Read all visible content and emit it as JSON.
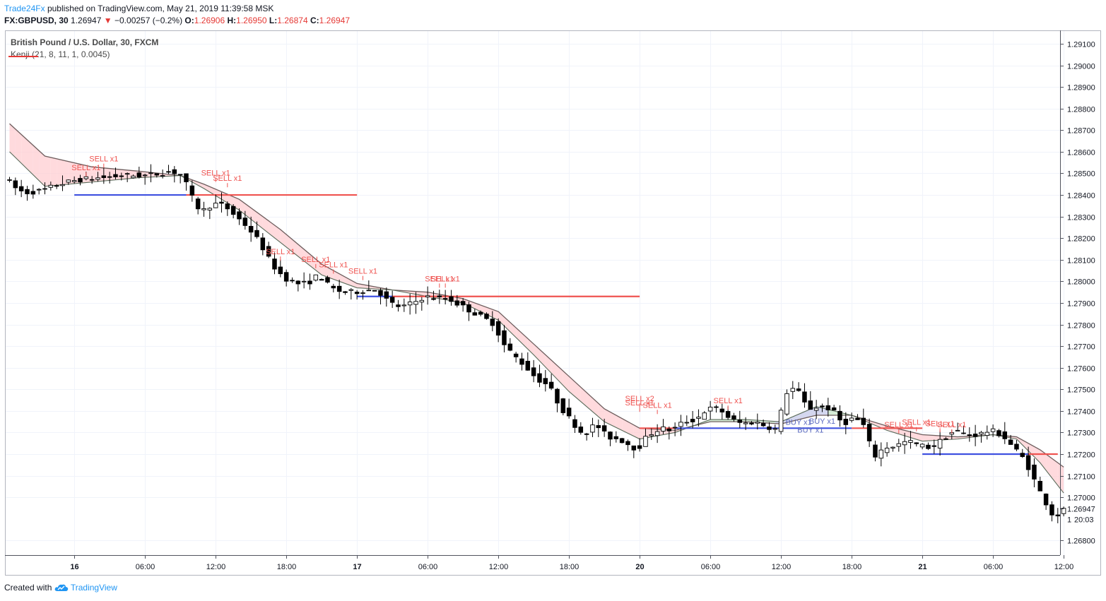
{
  "header": {
    "author": "Trade24Fx",
    "published": "published on TradingView.com, May 21, 2019 11:39:58 MSK",
    "symbol_interval": "FX:GBPUSD, 30",
    "last": "1.26947",
    "change_arrow": "▼",
    "change": "−0.00257 (−0.2%)",
    "o_label": "O:",
    "o_value": "1.26906",
    "h_label": "H:",
    "h_value": "1.26950",
    "l_label": "L:",
    "l_value": "1.26874",
    "c_label": "C:",
    "c_value": "1.26947"
  },
  "legend": {
    "title": "British Pound / U.S. Dollar, 30, FXCM",
    "indicator": "Kenji (21, 8, 11, 1, 0.0045)"
  },
  "footer": {
    "created_with": "Created with",
    "brand": "TradingView"
  },
  "colors": {
    "up_candle": "#ffffff",
    "down_candle": "#000000",
    "sell_text": "#ef5350",
    "buy_text": "#5c6bc0",
    "resistance": "#ef5350",
    "support": "#3f51e0",
    "cloud_bear": "#ffcdd2",
    "cloud_bull": "#c8e6c9",
    "cloud_neutral": "#c5cae9",
    "axis_text": "#131722",
    "grid": "#f0f3fa",
    "price_tag_bg": "#ffffff"
  },
  "chart_data": {
    "type": "candlestick",
    "symbol": "FX:GBPUSD",
    "interval": "30",
    "y_ticks": [
      "1.29100",
      "1.29000",
      "1.28900",
      "1.28800",
      "1.28700",
      "1.28600",
      "1.28500",
      "1.28400",
      "1.28300",
      "1.28200",
      "1.28100",
      "1.28000",
      "1.27900",
      "1.27800",
      "1.27700",
      "1.27600",
      "1.27500",
      "1.27400",
      "1.27300",
      "1.27200",
      "1.27100",
      "1.27000",
      "1.26800"
    ],
    "ylim": [
      1.2675,
      1.2915
    ],
    "x_ticks": [
      {
        "label": "16",
        "t": 5,
        "bold": true
      },
      {
        "label": "06:00",
        "t": 17
      },
      {
        "label": "12:00",
        "t": 29
      },
      {
        "label": "18:00",
        "t": 41
      },
      {
        "label": "17",
        "t": 53,
        "bold": true
      },
      {
        "label": "06:00",
        "t": 65
      },
      {
        "label": "12:00",
        "t": 77
      },
      {
        "label": "18:00",
        "t": 89
      },
      {
        "label": "20",
        "t": 101,
        "bold": true
      },
      {
        "label": "06:00",
        "t": 113
      },
      {
        "label": "12:00",
        "t": 125
      },
      {
        "label": "18:00",
        "t": 137
      },
      {
        "label": "21",
        "t": 149,
        "bold": true
      },
      {
        "label": "06:00",
        "t": 161
      },
      {
        "label": "12:00",
        "t": 173
      }
    ],
    "last_price": {
      "label": "1.26947",
      "value": 1.26947
    },
    "time_tag": {
      "label": "20:03",
      "value": 1.26897
    },
    "waypoints": [
      [
        -6,
        1.2848
      ],
      [
        -5,
        1.2844
      ],
      [
        -3,
        1.2841
      ],
      [
        0,
        1.2842
      ],
      [
        3,
        1.2845
      ],
      [
        6,
        1.2847
      ],
      [
        10,
        1.2848
      ],
      [
        14,
        1.2849
      ],
      [
        18,
        1.2849
      ],
      [
        22,
        1.2851
      ],
      [
        24,
        1.2849
      ],
      [
        25,
        1.2841
      ],
      [
        27,
        1.2832
      ],
      [
        29,
        1.2836
      ],
      [
        31,
        1.2835
      ],
      [
        33,
        1.283
      ],
      [
        35,
        1.2825
      ],
      [
        37,
        1.2818
      ],
      [
        39,
        1.2808
      ],
      [
        41,
        1.2802
      ],
      [
        43,
        1.2799
      ],
      [
        45,
        1.2799
      ],
      [
        47,
        1.2803
      ],
      [
        49,
        1.2797
      ],
      [
        51,
        1.2795
      ],
      [
        53,
        1.2795
      ],
      [
        55,
        1.2796
      ],
      [
        57,
        1.2796
      ],
      [
        59,
        1.279
      ],
      [
        61,
        1.2788
      ],
      [
        63,
        1.279
      ],
      [
        65,
        1.2793
      ],
      [
        67,
        1.2792
      ],
      [
        69,
        1.2792
      ],
      [
        71,
        1.2789
      ],
      [
        73,
        1.2786
      ],
      [
        75,
        1.2783
      ],
      [
        77,
        1.278
      ],
      [
        78,
        1.2772
      ],
      [
        80,
        1.2766
      ],
      [
        82,
        1.2761
      ],
      [
        84,
        1.2755
      ],
      [
        86,
        1.2752
      ],
      [
        88,
        1.2742
      ],
      [
        90,
        1.2735
      ],
      [
        92,
        1.2729
      ],
      [
        94,
        1.2734
      ],
      [
        96,
        1.2728
      ],
      [
        98,
        1.2727
      ],
      [
        100,
        1.2724
      ],
      [
        101,
        1.2722
      ],
      [
        103,
        1.2729
      ],
      [
        105,
        1.2732
      ],
      [
        107,
        1.2731
      ],
      [
        109,
        1.2735
      ],
      [
        111,
        1.2736
      ],
      [
        113,
        1.2741
      ],
      [
        115,
        1.2741
      ],
      [
        117,
        1.2736
      ],
      [
        119,
        1.2734
      ],
      [
        121,
        1.2735
      ],
      [
        123,
        1.2733
      ],
      [
        125,
        1.2731
      ],
      [
        126,
        1.2748
      ],
      [
        128,
        1.2751
      ],
      [
        130,
        1.2741
      ],
      [
        132,
        1.2742
      ],
      [
        134,
        1.2741
      ],
      [
        136,
        1.2734
      ],
      [
        138,
        1.2737
      ],
      [
        140,
        1.2732
      ],
      [
        141,
        1.2718
      ],
      [
        143,
        1.2723
      ],
      [
        145,
        1.2724
      ],
      [
        147,
        1.2726
      ],
      [
        149,
        1.2724
      ],
      [
        151,
        1.2723
      ],
      [
        153,
        1.2727
      ],
      [
        155,
        1.2731
      ],
      [
        157,
        1.2729
      ],
      [
        159,
        1.2729
      ],
      [
        161,
        1.2731
      ],
      [
        163,
        1.2729
      ],
      [
        165,
        1.2723
      ],
      [
        167,
        1.2717
      ],
      [
        169,
        1.2705
      ],
      [
        171,
        1.2695
      ],
      [
        172,
        1.269
      ],
      [
        173,
        1.2694
      ]
    ],
    "ma_fast": [
      [
        -6,
        1.286
      ],
      [
        0,
        1.2844
      ],
      [
        8,
        1.2846
      ],
      [
        16,
        1.2848
      ],
      [
        23,
        1.2849
      ],
      [
        27,
        1.2843
      ],
      [
        33,
        1.2833
      ],
      [
        40,
        1.2818
      ],
      [
        47,
        1.2803
      ],
      [
        53,
        1.2797
      ],
      [
        59,
        1.2796
      ],
      [
        65,
        1.2793
      ],
      [
        71,
        1.279
      ],
      [
        77,
        1.2782
      ],
      [
        83,
        1.2766
      ],
      [
        89,
        1.2749
      ],
      [
        95,
        1.2735
      ],
      [
        101,
        1.2727
      ],
      [
        107,
        1.273
      ],
      [
        113,
        1.2736
      ],
      [
        119,
        1.2736
      ],
      [
        125,
        1.2735
      ],
      [
        131,
        1.2742
      ],
      [
        137,
        1.2738
      ],
      [
        143,
        1.2731
      ],
      [
        149,
        1.2726
      ],
      [
        155,
        1.2727
      ],
      [
        161,
        1.2729
      ],
      [
        165,
        1.2727
      ],
      [
        169,
        1.2716
      ],
      [
        173,
        1.2702
      ]
    ],
    "ma_slow": [
      [
        -6,
        1.2873
      ],
      [
        0,
        1.2858
      ],
      [
        8,
        1.2853
      ],
      [
        16,
        1.2851
      ],
      [
        23,
        1.2849
      ],
      [
        27,
        1.2845
      ],
      [
        33,
        1.2838
      ],
      [
        40,
        1.2824
      ],
      [
        47,
        1.2808
      ],
      [
        53,
        1.2799
      ],
      [
        59,
        1.2796
      ],
      [
        65,
        1.2795
      ],
      [
        71,
        1.2792
      ],
      [
        77,
        1.2786
      ],
      [
        83,
        1.2771
      ],
      [
        89,
        1.2756
      ],
      [
        95,
        1.2741
      ],
      [
        101,
        1.2732
      ],
      [
        107,
        1.2731
      ],
      [
        113,
        1.2735
      ],
      [
        119,
        1.2735
      ],
      [
        125,
        1.2734
      ],
      [
        131,
        1.2738
      ],
      [
        137,
        1.2738
      ],
      [
        143,
        1.2733
      ],
      [
        149,
        1.2729
      ],
      [
        155,
        1.2728
      ],
      [
        161,
        1.2729
      ],
      [
        165,
        1.2728
      ],
      [
        169,
        1.2722
      ],
      [
        173,
        1.2714
      ]
    ],
    "levels": [
      {
        "kind": "support",
        "from": 5,
        "to": 24,
        "price": 1.284
      },
      {
        "kind": "resistance",
        "from": 24,
        "to": 53,
        "price": 1.284
      },
      {
        "kind": "support",
        "from": 53,
        "to": 59,
        "price": 1.2793
      },
      {
        "kind": "resistance",
        "from": 59,
        "to": 101,
        "price": 1.2793
      },
      {
        "kind": "resistance",
        "from": 101,
        "to": 107,
        "price": 1.2732
      },
      {
        "kind": "support",
        "from": 107,
        "to": 137,
        "price": 1.2732
      },
      {
        "kind": "resistance",
        "from": 137,
        "to": 149,
        "price": 1.2732
      },
      {
        "kind": "support",
        "from": 149,
        "to": 167,
        "price": 1.272
      },
      {
        "kind": "resistance",
        "from": 167,
        "to": 172,
        "price": 1.272
      }
    ],
    "signals": [
      {
        "text": "SELL x1",
        "t": 7,
        "price": 1.28515
      },
      {
        "text": "SELL x1",
        "t": 10,
        "price": 1.28555
      },
      {
        "text": "SELL x1",
        "t": 29,
        "price": 1.2849
      },
      {
        "text": "SELL x1",
        "t": 31,
        "price": 1.28465
      },
      {
        "text": "SELL x1",
        "t": 40,
        "price": 1.28125
      },
      {
        "text": "SELL x1",
        "t": 46,
        "price": 1.2809
      },
      {
        "text": "SELL x1",
        "t": 49,
        "price": 1.28065
      },
      {
        "text": "SELL x1",
        "t": 54,
        "price": 1.28035
      },
      {
        "text": "SELL x1",
        "t": 68,
        "price": 1.28
      },
      {
        "text": "SELL x1",
        "t": 67,
        "price": 1.28
      },
      {
        "text": "SELL x2",
        "t": 101,
        "price": 1.27445
      },
      {
        "text": "SELL x1",
        "t": 104,
        "price": 1.27415
      },
      {
        "text": "SELL x1",
        "t": 101,
        "price": 1.27425
      },
      {
        "text": "SELL x1",
        "t": 116,
        "price": 1.27435
      },
      {
        "text": "BUY x1",
        "t": 128,
        "price": 1.27335
      },
      {
        "text": "BUY x1",
        "t": 132,
        "price": 1.2734
      },
      {
        "text": "BUY x1",
        "t": 130,
        "price": 1.273
      },
      {
        "text": "SELL x1",
        "t": 145,
        "price": 1.27325
      },
      {
        "text": "SELL x1",
        "t": 148,
        "price": 1.27335
      },
      {
        "text": "SELL x1",
        "t": 152,
        "price": 1.2733
      },
      {
        "text": "SELL x1",
        "t": 154,
        "price": 1.27325
      }
    ]
  }
}
